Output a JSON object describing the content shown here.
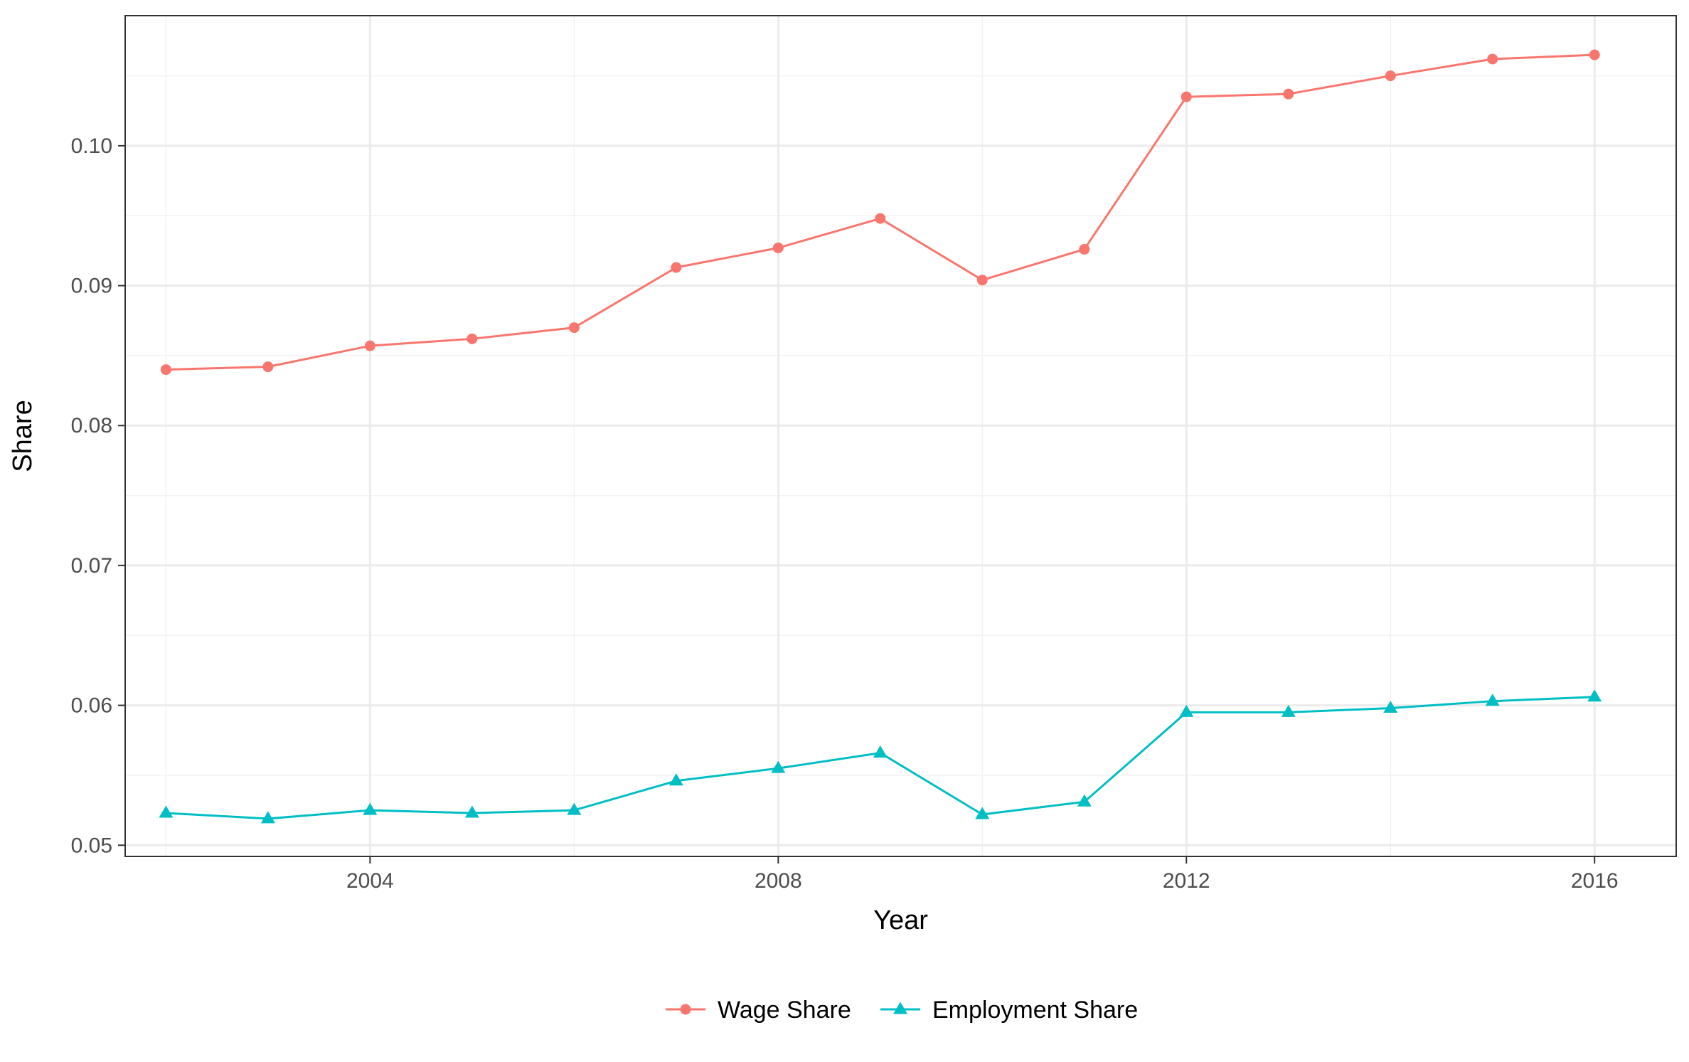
{
  "chart_data": {
    "type": "line",
    "xlabel": "Year",
    "ylabel": "Share",
    "xlim": [
      2001.6,
      2016.8
    ],
    "ylim": [
      0.0492,
      0.1093
    ],
    "x_ticks": [
      2004,
      2008,
      2012,
      2016
    ],
    "x_minor_ticks": [
      2002,
      2006,
      2010,
      2014
    ],
    "y_ticks": [
      0.05,
      0.06,
      0.07,
      0.08,
      0.09,
      0.1
    ],
    "y_tick_labels": [
      "0.05",
      "0.06",
      "0.07",
      "0.08",
      "0.09",
      "0.10"
    ],
    "y_minor_ticks": [
      0.055,
      0.065,
      0.075,
      0.085,
      0.095,
      0.105
    ],
    "x": [
      2002,
      2003,
      2004,
      2005,
      2006,
      2007,
      2008,
      2009,
      2010,
      2011,
      2012,
      2013,
      2014,
      2015,
      2016
    ],
    "series": [
      {
        "name": "Wage Share",
        "color": "#F8766D",
        "marker": "circle",
        "values": [
          0.084,
          0.0842,
          0.0857,
          0.0862,
          0.087,
          0.0913,
          0.0927,
          0.0948,
          0.0904,
          0.0926,
          0.1035,
          0.1037,
          0.105,
          0.1062,
          0.1065
        ]
      },
      {
        "name": "Employment Share",
        "color": "#00BFC4",
        "marker": "triangle",
        "values": [
          0.0523,
          0.0519,
          0.0525,
          0.0523,
          0.0525,
          0.0546,
          0.0555,
          0.0566,
          0.0522,
          0.0531,
          0.0595,
          0.0595,
          0.0598,
          0.0603,
          0.0606
        ]
      }
    ],
    "grid": true,
    "legend_position": "bottom",
    "colors": {
      "panel_border": "#333333",
      "grid_major": "#ebebeb",
      "grid_minor": "#f2f2f2",
      "tick_text": "#4d4d4d",
      "title_text": "#000000"
    }
  }
}
